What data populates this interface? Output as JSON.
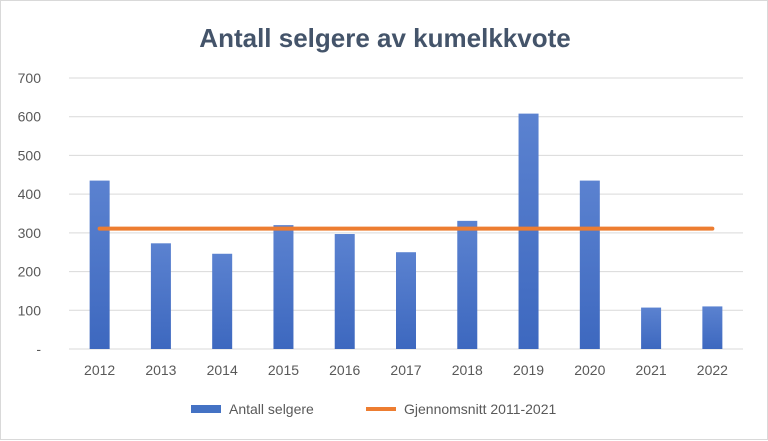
{
  "chart_data": {
    "type": "bar",
    "title": "Antall selgere av kumelkkvote",
    "categories": [
      "2012",
      "2013",
      "2014",
      "2015",
      "2016",
      "2017",
      "2018",
      "2019",
      "2020",
      "2021",
      "2022"
    ],
    "series": [
      {
        "name": "Antall selgere",
        "type": "bar",
        "values": [
          435,
          273,
          246,
          320,
          297,
          250,
          331,
          608,
          435,
          107,
          110
        ]
      },
      {
        "name": "Gjennomsnitt 2011-2021",
        "type": "line",
        "values": [
          311,
          311,
          311,
          311,
          311,
          311,
          311,
          311,
          311,
          311,
          311
        ]
      }
    ],
    "y_ticks": [
      "-",
      "100",
      "200",
      "300",
      "400",
      "500",
      "600",
      "700"
    ],
    "ylim": [
      0,
      700
    ],
    "grid": true,
    "legend_position": "bottom",
    "colors": {
      "bar": "#4472c4",
      "line": "#ed7d31"
    }
  }
}
